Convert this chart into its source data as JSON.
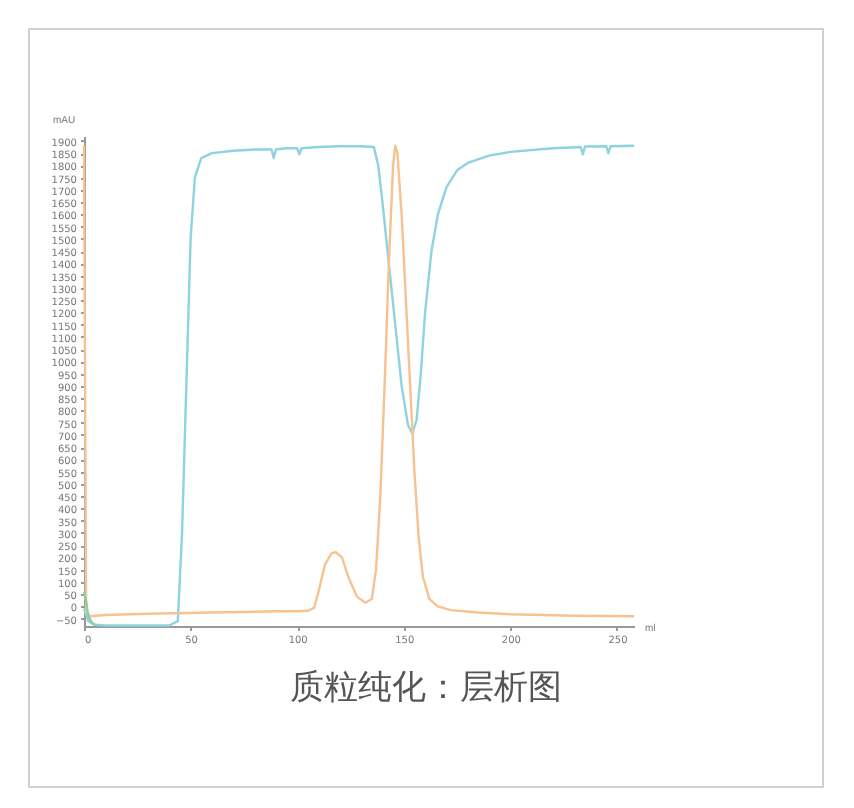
{
  "chart_data": {
    "type": "line",
    "xlabel": "ml",
    "ylabel": "mAU",
    "annotations": [
      "质粒纯化：层析图"
    ],
    "xlim": [
      0,
      258
    ],
    "ylim": [
      -80,
      1920
    ],
    "xticks": [
      0,
      50,
      100,
      150,
      200,
      250
    ],
    "yticks": [
      -50,
      0,
      50,
      100,
      150,
      200,
      250,
      300,
      350,
      400,
      450,
      500,
      550,
      600,
      650,
      700,
      750,
      800,
      850,
      900,
      950,
      1000,
      1050,
      1100,
      1150,
      1200,
      1250,
      1300,
      1350,
      1400,
      1450,
      1500,
      1550,
      1600,
      1650,
      1700,
      1750,
      1800,
      1850,
      1900
    ],
    "grid": false,
    "legend": false,
    "series": [
      {
        "color": "#8fd3e0",
        "x": [
          0,
          2,
          5,
          10,
          20,
          30,
          40,
          44,
          46,
          48,
          50,
          52,
          55,
          60,
          70,
          80,
          88,
          89,
          90,
          95,
          100,
          101,
          102,
          110,
          120,
          130,
          136,
          138,
          140,
          143,
          146,
          149,
          152,
          154,
          156,
          158,
          160,
          163,
          166,
          170,
          175,
          180,
          190,
          200,
          220,
          233,
          234,
          235,
          245,
          246,
          247,
          258
        ],
        "values": [
          -10,
          -60,
          -75,
          -78,
          -78,
          -78,
          -78,
          -60,
          300,
          900,
          1500,
          1750,
          1830,
          1850,
          1860,
          1865,
          1865,
          1830,
          1865,
          1870,
          1870,
          1845,
          1870,
          1875,
          1878,
          1878,
          1875,
          1800,
          1650,
          1400,
          1150,
          900,
          740,
          705,
          760,
          950,
          1200,
          1450,
          1600,
          1710,
          1780,
          1810,
          1840,
          1855,
          1870,
          1875,
          1845,
          1877,
          1878,
          1850,
          1878,
          1880
        ]
      },
      {
        "color": "#f7c28f",
        "x": [
          0,
          1,
          3,
          10,
          30,
          60,
          90,
          100,
          105,
          108,
          110,
          113,
          116,
          118,
          121,
          124,
          128,
          132,
          135,
          137,
          139,
          141,
          143,
          145,
          146,
          147,
          149,
          151,
          153,
          155,
          157,
          159,
          162,
          166,
          172,
          185,
          200,
          230,
          258
        ],
        "values": [
          1880,
          -20,
          -40,
          -35,
          -30,
          -25,
          -20,
          -20,
          -18,
          -5,
          60,
          170,
          215,
          222,
          200,
          120,
          40,
          15,
          30,
          150,
          450,
          900,
          1400,
          1800,
          1880,
          1850,
          1600,
          1250,
          900,
          550,
          280,
          120,
          30,
          0,
          -15,
          -25,
          -32,
          -38,
          -40
        ]
      },
      {
        "color": "#8fcf9a",
        "x": [
          0,
          1,
          2,
          4,
          6
        ],
        "values": [
          60,
          20,
          -40,
          -70,
          -78
        ]
      }
    ]
  }
}
